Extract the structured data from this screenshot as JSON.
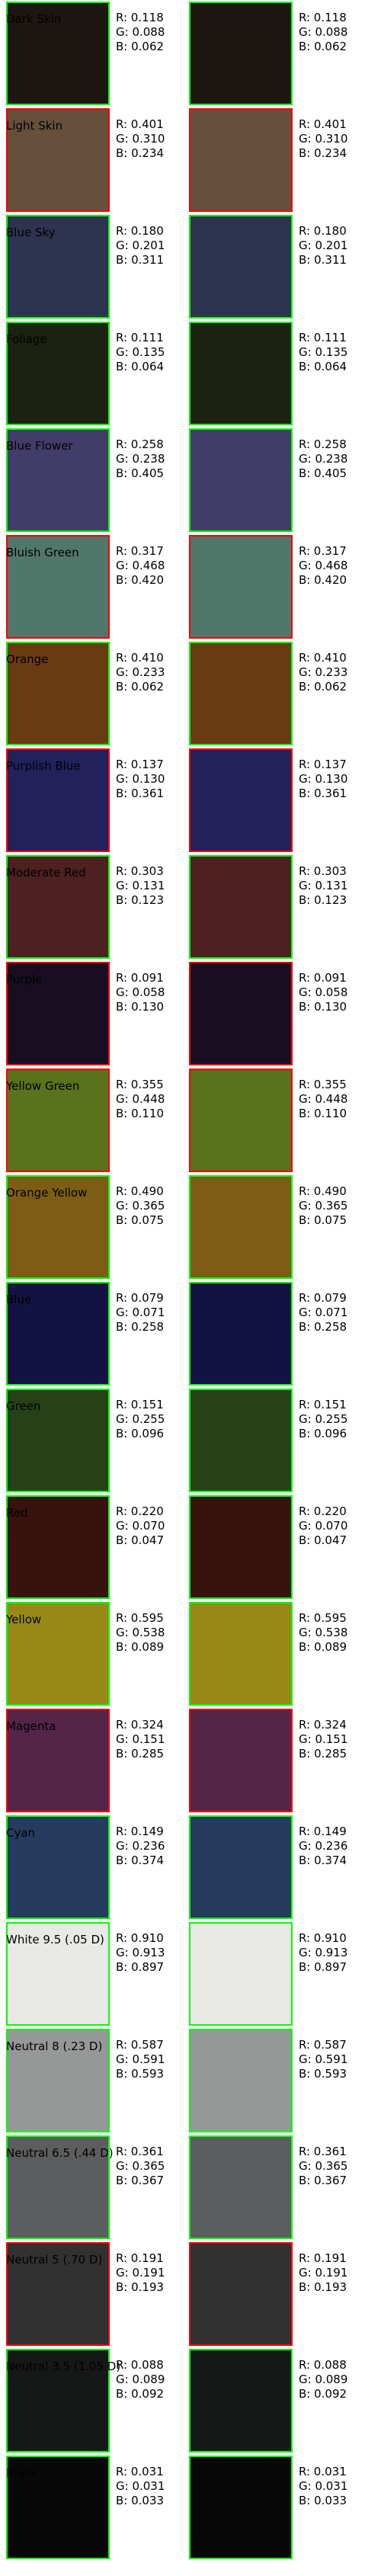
{
  "patches": [
    {
      "name": "Dark Skin",
      "r": "0.118",
      "g": "0.088",
      "b": "0.062",
      "color": "#1e1610",
      "border": "#00ff00"
    },
    {
      "name": "Light Skin",
      "r": "0.401",
      "g": "0.310",
      "b": "0.234",
      "color": "#66503c",
      "border": "#ff0000"
    },
    {
      "name": "Blue Sky",
      "r": "0.180",
      "g": "0.201",
      "b": "0.311",
      "color": "#2e3350",
      "border": "#00ff00"
    },
    {
      "name": "Foliage",
      "r": "0.111",
      "g": "0.135",
      "b": "0.064",
      "color": "#1c2210",
      "border": "#00ff00"
    },
    {
      "name": "Blue Flower",
      "r": "0.258",
      "g": "0.238",
      "b": "0.405",
      "color": "#423d68",
      "border": "#00ff00"
    },
    {
      "name": "Bluish Green",
      "r": "0.317",
      "g": "0.468",
      "b": "0.420",
      "color": "#51776b",
      "border": "#ff0000"
    },
    {
      "name": "Orange",
      "r": "0.410",
      "g": "0.233",
      "b": "0.062",
      "color": "#693b10",
      "border": "#00ff00"
    },
    {
      "name": "Purplish Blue",
      "r": "0.137",
      "g": "0.130",
      "b": "0.361",
      "color": "#23215c",
      "border": "#ff0000"
    },
    {
      "name": "Moderate Red",
      "r": "0.303",
      "g": "0.131",
      "b": "0.123",
      "color": "#4d2120",
      "border": "#00ff00"
    },
    {
      "name": "Purple",
      "r": "0.091",
      "g": "0.058",
      "b": "0.130",
      "color": "#170f21",
      "border": "#ff0000"
    },
    {
      "name": "Yellow Green",
      "r": "0.355",
      "g": "0.448",
      "b": "0.110",
      "color": "#5a721c",
      "border": "#ff0000"
    },
    {
      "name": "Orange Yellow",
      "r": "0.490",
      "g": "0.365",
      "b": "0.075",
      "color": "#7d5d13",
      "border": "#00ff00"
    },
    {
      "name": "Blue",
      "r": "0.079",
      "g": "0.071",
      "b": "0.258",
      "color": "#141242",
      "border": "#00ff00"
    },
    {
      "name": "Green",
      "r": "0.151",
      "g": "0.255",
      "b": "0.096",
      "color": "#264118",
      "border": "#00ff00"
    },
    {
      "name": "Red",
      "r": "0.220",
      "g": "0.070",
      "b": "0.047",
      "color": "#38120c",
      "border": "#00ff00"
    },
    {
      "name": "Yellow",
      "r": "0.595",
      "g": "0.538",
      "b": "0.089",
      "color": "#988917",
      "border": "#00ff00"
    },
    {
      "name": "Magenta",
      "r": "0.324",
      "g": "0.151",
      "b": "0.285",
      "color": "#532649",
      "border": "#ff0000"
    },
    {
      "name": "Cyan",
      "r": "0.149",
      "g": "0.236",
      "b": "0.374",
      "color": "#263c5f",
      "border": "#00ff00"
    },
    {
      "name": "White 9.5 (.05 D)",
      "r": "0.910",
      "g": "0.913",
      "b": "0.897",
      "color": "#e8e9e5",
      "border": "#00ff00"
    },
    {
      "name": "Neutral 8 (.23 D)",
      "r": "0.587",
      "g": "0.591",
      "b": "0.593",
      "color": "#969797",
      "border": "#00ff00"
    },
    {
      "name": "Neutral 6.5 (.44 D)",
      "r": "0.361",
      "g": "0.365",
      "b": "0.367",
      "color": "#5c5d5e",
      "border": "#00ff00"
    },
    {
      "name": "Neutral 5 (.70 D)",
      "r": "0.191",
      "g": "0.191",
      "b": "0.193",
      "color": "#313131",
      "border": "#ff0000"
    },
    {
      "name": "Neutral 3.5 (1.05 D)",
      "r": "0.088",
      "g": "0.089",
      "b": "0.092",
      "color": "#161717",
      "border": "#00ff00"
    },
    {
      "name": "Black",
      "r": "0.031",
      "g": "0.031",
      "b": "0.033",
      "color": "#080808",
      "border": "#00ff00"
    }
  ],
  "prefix": {
    "r": "R: ",
    "g": "G: ",
    "b": "B: "
  }
}
